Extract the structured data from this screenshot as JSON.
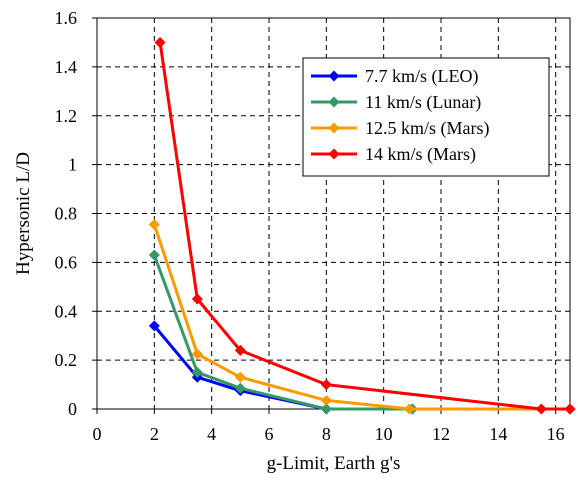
{
  "chart_data": {
    "type": "line",
    "xlabel": "g-Limit, Earth g's",
    "ylabel": "Hypersonic L/D",
    "xlim": [
      0,
      16.5
    ],
    "ylim": [
      0,
      1.6
    ],
    "x_ticks": [
      0,
      2,
      4,
      6,
      8,
      10,
      12,
      14,
      16
    ],
    "y_ticks": [
      0,
      0.2,
      0.4,
      0.6,
      0.8,
      1,
      1.2,
      1.4,
      1.6
    ],
    "y_tick_labels": [
      "0",
      "0.2",
      "0.4",
      "0.6",
      "0.8",
      "1",
      "1.2",
      "1.4",
      "1.6"
    ],
    "grid": true,
    "legend_position": "top-right",
    "series": [
      {
        "name": "7.7 km/s (LEO)",
        "color": "#0000ff",
        "x": [
          2.0,
          3.5,
          5.0,
          8.0,
          11.0,
          16.5
        ],
        "y": [
          0.34,
          0.13,
          0.075,
          0.0,
          0.0,
          0.0
        ]
      },
      {
        "name": "11 km/s (Lunar)",
        "color": "#339966",
        "x": [
          2.0,
          3.5,
          5.0,
          8.0,
          11.0,
          16.5
        ],
        "y": [
          0.63,
          0.15,
          0.085,
          0.0,
          0.0,
          0.0
        ]
      },
      {
        "name": "12.5 km/s (Mars)",
        "color": "#ff9900",
        "x": [
          2.0,
          3.5,
          5.0,
          8.0,
          10.9,
          16.5
        ],
        "y": [
          0.755,
          0.225,
          0.13,
          0.035,
          0.0,
          0.0
        ]
      },
      {
        "name": "14 km/s (Mars)",
        "color": "#ff0000",
        "x": [
          2.2,
          3.5,
          5.0,
          8.0,
          15.5,
          16.5
        ],
        "y": [
          1.5,
          0.45,
          0.24,
          0.1,
          0.0,
          0.0
        ]
      }
    ]
  }
}
